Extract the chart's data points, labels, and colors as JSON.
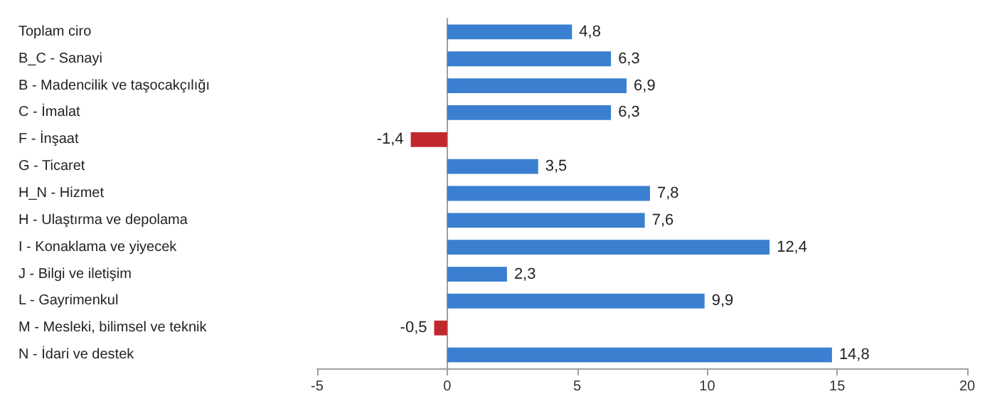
{
  "chart_data": {
    "type": "bar",
    "orientation": "horizontal",
    "categories": [
      "Toplam ciro",
      "B_C - Sanayi",
      "B - Madencilik ve taşocakçılığı",
      "C - İmalat",
      "F - İnşaat",
      "G - Ticaret",
      "H_N - Hizmet",
      "H - Ulaştırma ve depolama",
      "I - Konaklama ve yiyecek",
      "J - Bilgi ve iletişim",
      "L - Gayrimenkul",
      "M - Mesleki, bilimsel ve teknik",
      "N - İdari ve destek"
    ],
    "values": [
      4.8,
      6.3,
      6.9,
      6.3,
      -1.4,
      3.5,
      7.8,
      7.6,
      12.4,
      2.3,
      9.9,
      -0.5,
      14.8
    ],
    "colors": [
      "#3a7fd0",
      "#3a7fd0",
      "#3a7fd0",
      "#3a7fd0",
      "#c0282d",
      "#3a7fd0",
      "#3a7fd0",
      "#3a7fd0",
      "#3a7fd0",
      "#3a7fd0",
      "#3a7fd0",
      "#c0282d",
      "#3a7fd0"
    ],
    "xlim": [
      -5,
      20
    ],
    "xticks": [
      -5,
      0,
      5,
      10,
      15,
      20
    ],
    "value_labels": [
      "4,8",
      "6,3",
      "6,9",
      "6,3",
      "-1,4",
      "3,5",
      "7,8",
      "7,6",
      "12,4",
      "2,3",
      "9,9",
      "-0,5",
      "14,8"
    ]
  }
}
